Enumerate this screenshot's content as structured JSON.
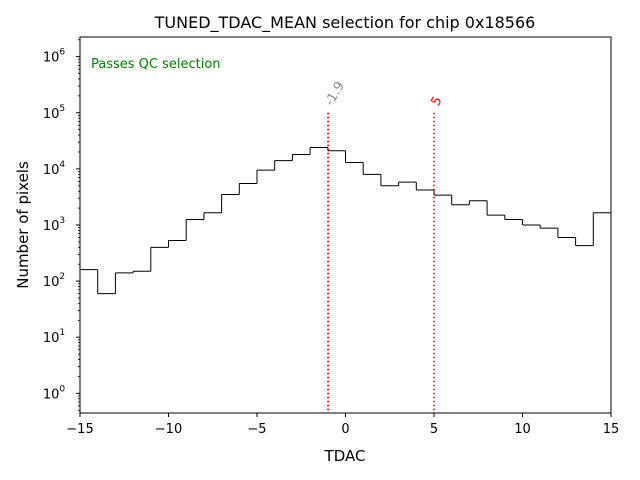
{
  "chart_data": {
    "type": "histogram",
    "title": "TUNED_TDAC_MEAN selection for chip 0x18566",
    "xlabel": "TDAC",
    "ylabel": "Number of pixels",
    "xlim": [
      -15,
      15
    ],
    "ylim_log10": [
      -0.35,
      6.35
    ],
    "yscale": "log",
    "x_ticks": [
      -15,
      -10,
      -5,
      0,
      5,
      10,
      15
    ],
    "x_tick_labels": [
      "−15",
      "−10",
      "−5",
      "0",
      "5",
      "10",
      "15"
    ],
    "y_ticks_exponent": [
      0,
      1,
      2,
      3,
      4,
      5,
      6
    ],
    "y_tick_base": "10",
    "bin_edges": [
      -15,
      -14,
      -13,
      -12,
      -11,
      -10,
      -9,
      -8,
      -7,
      -6,
      -5,
      -4,
      -3,
      -2,
      -1,
      0,
      1,
      2,
      3,
      4,
      5,
      6,
      7,
      8,
      9,
      10,
      11,
      12,
      13,
      14,
      15
    ],
    "counts": [
      160,
      60,
      140,
      150,
      400,
      530,
      1250,
      1650,
      3500,
      5500,
      9500,
      14000,
      18000,
      24000,
      21000,
      13000,
      8000,
      5000,
      5800,
      4200,
      3400,
      2300,
      2700,
      1500,
      1250,
      1000,
      880,
      600,
      430,
      1650
    ],
    "status_text": "Passes QC selection",
    "status_color": "#008000",
    "annotations": [
      {
        "x": -1,
        "label": "-1.9",
        "color": "#888888"
      },
      {
        "x": -1,
        "label": "",
        "color": "#ff0000"
      },
      {
        "x": 5,
        "label": "5",
        "color": "#ff0000"
      }
    ],
    "vline_top_value": 100000
  }
}
